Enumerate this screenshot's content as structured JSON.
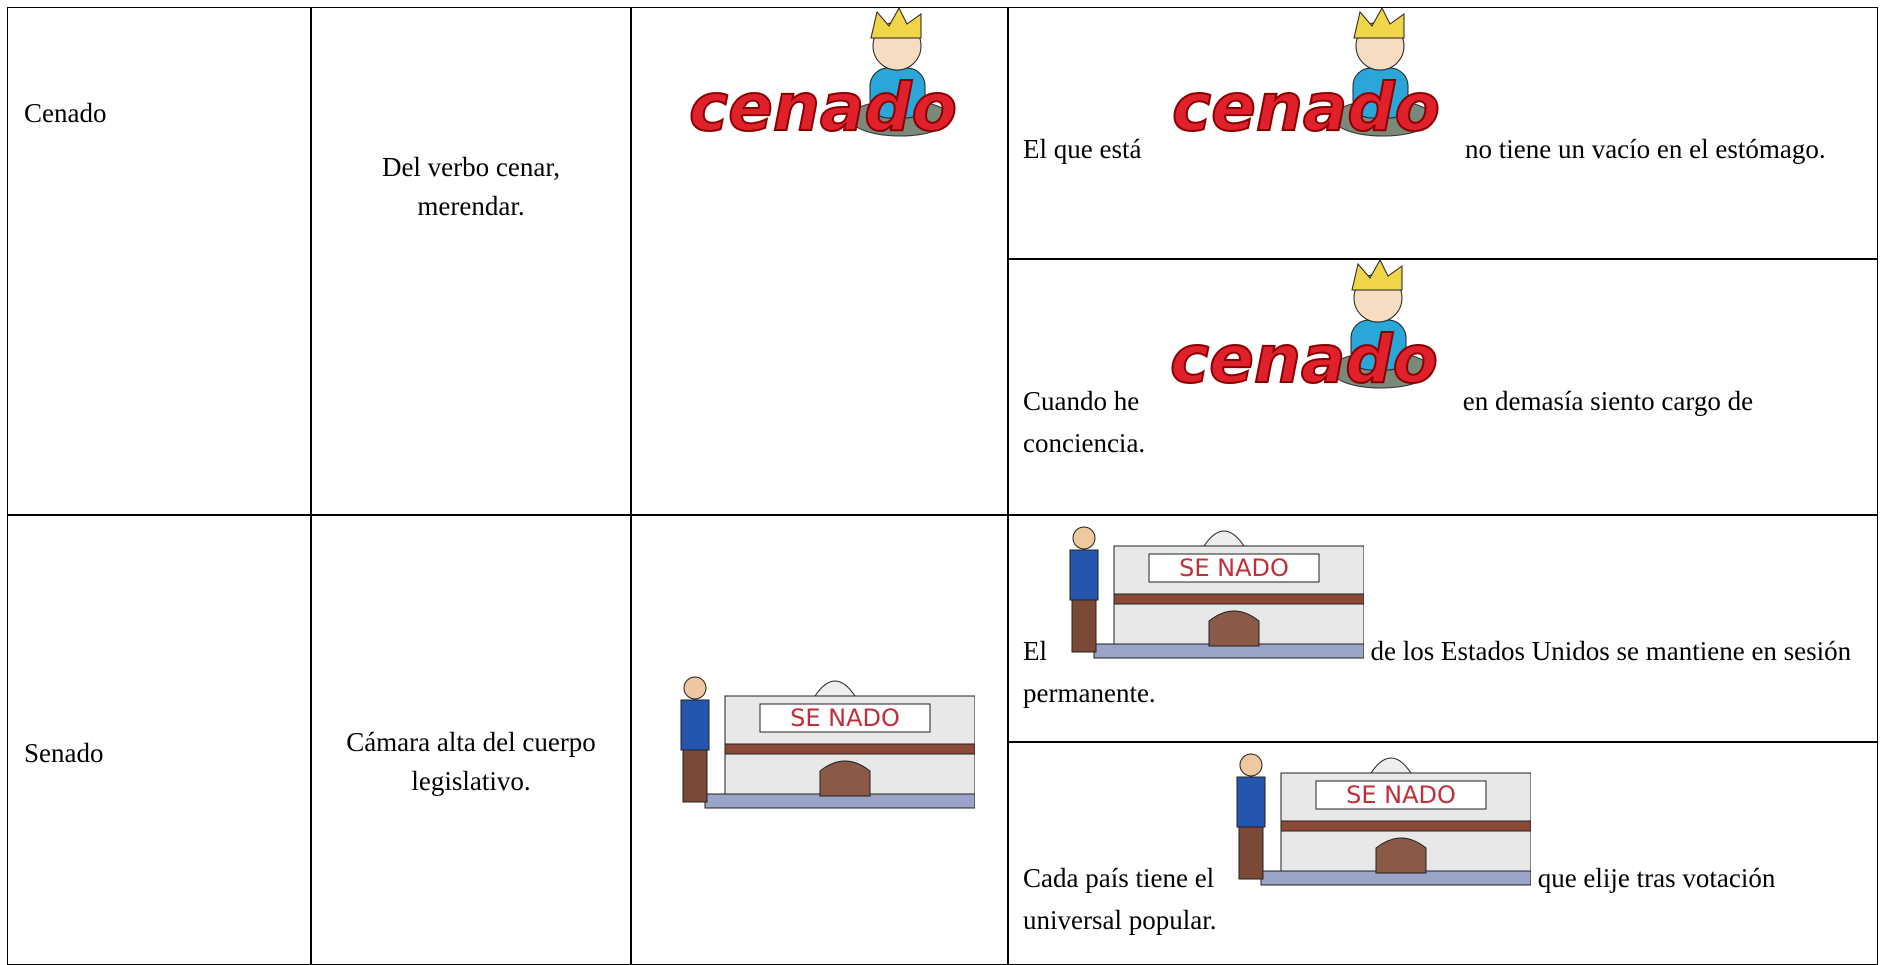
{
  "table": {
    "rows": [
      {
        "word": "Cenado",
        "definition": "Del verbo cenar, merendar.",
        "image_text": "cenado",
        "examples": [
          {
            "before": "El que está",
            "after": "no tiene un vacío en el estómago."
          },
          {
            "before": "Cuando he",
            "after": "en demasía siento cargo de conciencia."
          }
        ]
      },
      {
        "word": "Senado",
        "definition": "Cámara alta del cuerpo legislativo.",
        "image_text": "SE NADO",
        "examples": [
          {
            "before": "El",
            "after": "de los Estados Unidos se mantiene en sesión permanente."
          },
          {
            "before": "Cada país tiene el",
            "after": "que elije tras votación universal popular."
          }
        ]
      }
    ]
  }
}
